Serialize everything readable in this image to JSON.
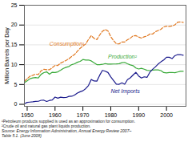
{
  "chart_data": {
    "type": "line",
    "ylabel": "Million Barrels per Day",
    "x": [
      1949,
      1950,
      1951,
      1952,
      1953,
      1954,
      1955,
      1956,
      1957,
      1958,
      1959,
      1960,
      1961,
      1962,
      1963,
      1964,
      1965,
      1966,
      1967,
      1968,
      1969,
      1970,
      1971,
      1972,
      1973,
      1974,
      1975,
      1976,
      1977,
      1978,
      1979,
      1980,
      1981,
      1982,
      1983,
      1984,
      1985,
      1986,
      1987,
      1988,
      1989,
      1990,
      1991,
      1992,
      1993,
      1994,
      1995,
      1996,
      1997,
      1998,
      1999,
      2000,
      2001,
      2002,
      2003,
      2004,
      2005,
      2006
    ],
    "series": [
      {
        "name": "Consumption¹",
        "color": "#e07820",
        "line_style": "dashed",
        "values": [
          5.77,
          6.46,
          7.08,
          7.32,
          7.62,
          7.53,
          8.46,
          8.83,
          8.73,
          8.72,
          9.24,
          9.8,
          9.81,
          10.4,
          10.74,
          11.08,
          11.51,
          12.1,
          12.56,
          13.4,
          14.14,
          14.7,
          15.21,
          16.37,
          17.31,
          16.65,
          16.32,
          17.46,
          18.43,
          18.85,
          18.51,
          17.06,
          16.06,
          15.3,
          15.23,
          15.73,
          15.73,
          16.28,
          16.67,
          17.28,
          17.33,
          16.99,
          16.71,
          17.03,
          17.24,
          17.72,
          17.72,
          18.31,
          18.62,
          18.92,
          19.52,
          19.7,
          19.65,
          19.76,
          20.03,
          20.73,
          20.8,
          20.69
        ]
      },
      {
        "name": "Production²",
        "color": "#3aaa3a",
        "line_style": "solid",
        "values": [
          5.48,
          5.91,
          6.46,
          6.66,
          6.77,
          6.64,
          7.57,
          8.0,
          8.19,
          7.58,
          8.09,
          8.01,
          8.19,
          8.59,
          9.07,
          9.33,
          9.55,
          10.01,
          10.22,
          10.6,
          10.83,
          11.3,
          11.16,
          11.18,
          10.95,
          10.46,
          10.01,
          10.01,
          10.08,
          10.28,
          10.14,
          10.17,
          10.18,
          10.2,
          10.25,
          10.51,
          10.58,
          10.23,
          9.94,
          9.76,
          9.16,
          8.91,
          9.08,
          8.87,
          8.58,
          8.51,
          8.63,
          8.7,
          8.69,
          8.51,
          8.02,
          7.94,
          8.03,
          8.05,
          7.99,
          8.15,
          8.32,
          8.33
        ]
      },
      {
        "name": "Net Imports",
        "color": "#1a1a8c",
        "line_style": "solid",
        "values": [
          0.17,
          0.49,
          0.56,
          0.62,
          0.74,
          0.76,
          1.02,
          1.03,
          0.71,
          0.98,
          1.08,
          1.82,
          1.56,
          1.8,
          1.72,
          1.73,
          2.0,
          2.04,
          2.33,
          2.84,
          3.17,
          3.42,
          3.96,
          4.74,
          6.26,
          5.89,
          5.85,
          7.31,
          8.56,
          8.36,
          8.03,
          6.91,
          5.99,
          5.11,
          5.05,
          5.43,
          5.07,
          6.22,
          6.68,
          7.4,
          8.06,
          7.16,
          6.63,
          6.94,
          6.8,
          8.06,
          8.83,
          9.45,
          10.16,
          10.71,
          11.2,
          11.86,
          11.87,
          11.53,
          12.26,
          12.54,
          12.55,
          12.39
        ]
      }
    ],
    "xlim": [
      1949,
      2007
    ],
    "xticks": [
      1950,
      1960,
      1970,
      1980,
      1990,
      2000
    ],
    "ylim": [
      -0.5,
      25
    ],
    "yticks": [
      0,
      5,
      10,
      15,
      20,
      25
    ],
    "grid": "y",
    "annotations": [
      {
        "text": "Consumption¹",
        "x": 1958,
        "y": 14.8,
        "color": "#e07820"
      },
      {
        "text": "Production²",
        "x": 1979,
        "y": 11.5,
        "color": "#3aaa3a"
      },
      {
        "text": "Net Imports",
        "x": 1980,
        "y": 2.8,
        "color": "#1a1a8c"
      }
    ],
    "caption": [
      "¹Petroleum products supplied is used as an approximation for consumption.",
      "²Crude oil and natural gas plant liquids production.",
      "Source: Energy Information Administration, Annual Energy Review 2007–",
      "Table 5.1. (June 2008)"
    ]
  }
}
